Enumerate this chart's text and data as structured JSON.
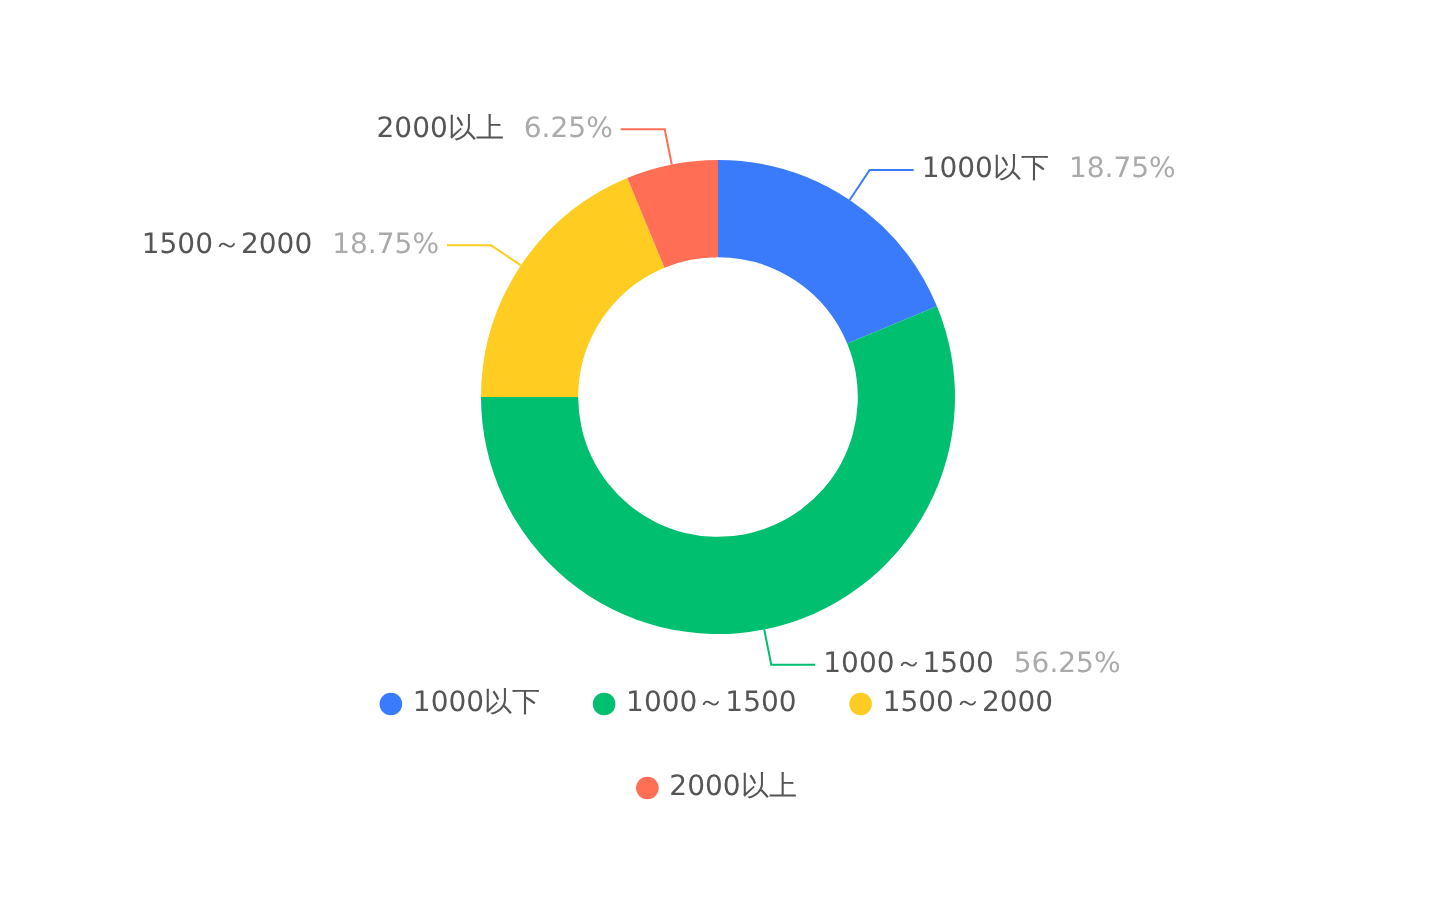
{
  "chart_data": {
    "type": "donut",
    "categories": [
      "1000以下",
      "1000～1500",
      "1500～2000",
      "2000以上"
    ],
    "values": [
      18.75,
      56.25,
      18.75,
      6.25
    ],
    "colors": [
      "#3a7bfc",
      "#00bf6f",
      "#ffcc22",
      "#ff6e55"
    ],
    "value_labels": [
      "18.75%",
      "56.25%",
      "18.75%",
      "6.25%"
    ],
    "legend": "bottom"
  }
}
